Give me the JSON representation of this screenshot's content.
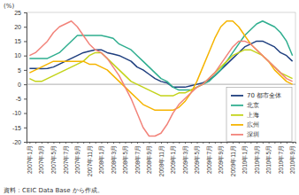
{
  "chart_data": {
    "type": "line",
    "y_label": "(%)",
    "source": "資料：CEIC Data Base から作成。",
    "categories": [
      "2007年1月",
      null,
      "2007年3月",
      null,
      "2007年5月",
      null,
      "2007年7月",
      null,
      "2007年9月",
      null,
      "2007年11月",
      null,
      "2008年1月",
      null,
      "2008年3月",
      null,
      "2008年5月",
      null,
      "2008年7月",
      null,
      "2008年9月",
      null,
      "2008年11月",
      null,
      "2009年1月",
      null,
      "2009年3月",
      null,
      "2009年5月",
      null,
      "2009年7月",
      null,
      "2009年9月",
      null,
      "2009年11月",
      null,
      "2010年1月",
      null,
      "2010年3月",
      null,
      "2010年5月",
      null,
      "2010年7月",
      null,
      "2010年9月"
    ],
    "series": [
      {
        "name": "70 都市全体",
        "color": "#1f3f7f",
        "values": [
          5.5,
          5.5,
          5.4,
          5.5,
          6,
          7,
          8,
          9,
          10,
          11,
          11.5,
          12,
          12,
          11,
          10.5,
          10,
          9,
          8,
          6,
          5,
          3.5,
          2,
          1,
          0.5,
          -1,
          -1,
          -1,
          -0.5,
          0,
          0.5,
          1.5,
          3,
          5,
          7,
          9,
          11,
          13,
          14,
          15,
          15,
          14,
          13,
          11,
          10,
          8
        ]
      },
      {
        "name": "北京",
        "color": "#2fae8f",
        "values": [
          9,
          9,
          9,
          9,
          10,
          11,
          13,
          15,
          17,
          17,
          17,
          17,
          17,
          16.5,
          16,
          14,
          13,
          12,
          10,
          8,
          6,
          4,
          2,
          1,
          -1,
          -2,
          -2,
          -2,
          -1,
          0,
          1,
          3,
          5,
          8,
          11,
          14,
          17,
          19,
          21,
          22,
          21,
          20,
          18,
          15,
          10
        ]
      },
      {
        "name": "上海",
        "color": "#c3d31a",
        "values": [
          2,
          1,
          1,
          2,
          3,
          4,
          5,
          6,
          7,
          8,
          10,
          11,
          11,
          9,
          7,
          5,
          3,
          1,
          0,
          -1,
          -2,
          -3,
          -4,
          -4,
          -4,
          -3,
          -3,
          -2,
          -1,
          0,
          2,
          4,
          6,
          8,
          10,
          11,
          12,
          12,
          11,
          10,
          8,
          6,
          4,
          3,
          2
        ]
      },
      {
        "name": "広州",
        "color": "#f5b400",
        "values": [
          4,
          5,
          6,
          7,
          8,
          8,
          8,
          8,
          8,
          8,
          7,
          7,
          6,
          5,
          3,
          1,
          -1,
          -3,
          -5,
          -7,
          -8,
          -9,
          -9,
          -9,
          -9,
          -8,
          -6,
          -3,
          1,
          6,
          11,
          16,
          20,
          22,
          22,
          20,
          17,
          14,
          12,
          10,
          8,
          5,
          3,
          1,
          0
        ]
      },
      {
        "name": "深圳",
        "color": "#f2837a",
        "values": [
          10,
          11,
          13,
          15,
          18,
          20,
          21,
          22,
          20,
          17,
          14,
          12,
          11,
          9,
          6,
          3,
          -1,
          -5,
          -10,
          -15,
          -18,
          -18,
          -17,
          -14,
          -10,
          -7,
          -5,
          -3,
          -1,
          0,
          2,
          4,
          7,
          10,
          13,
          15,
          15,
          14,
          12,
          10,
          8,
          6,
          4,
          2,
          1
        ]
      }
    ],
    "ylim": [
      -20,
      25
    ],
    "yticks": [
      -20,
      -15,
      -10,
      -5,
      0,
      5,
      10,
      15,
      20,
      25
    ],
    "grid": false,
    "legend": "right"
  }
}
